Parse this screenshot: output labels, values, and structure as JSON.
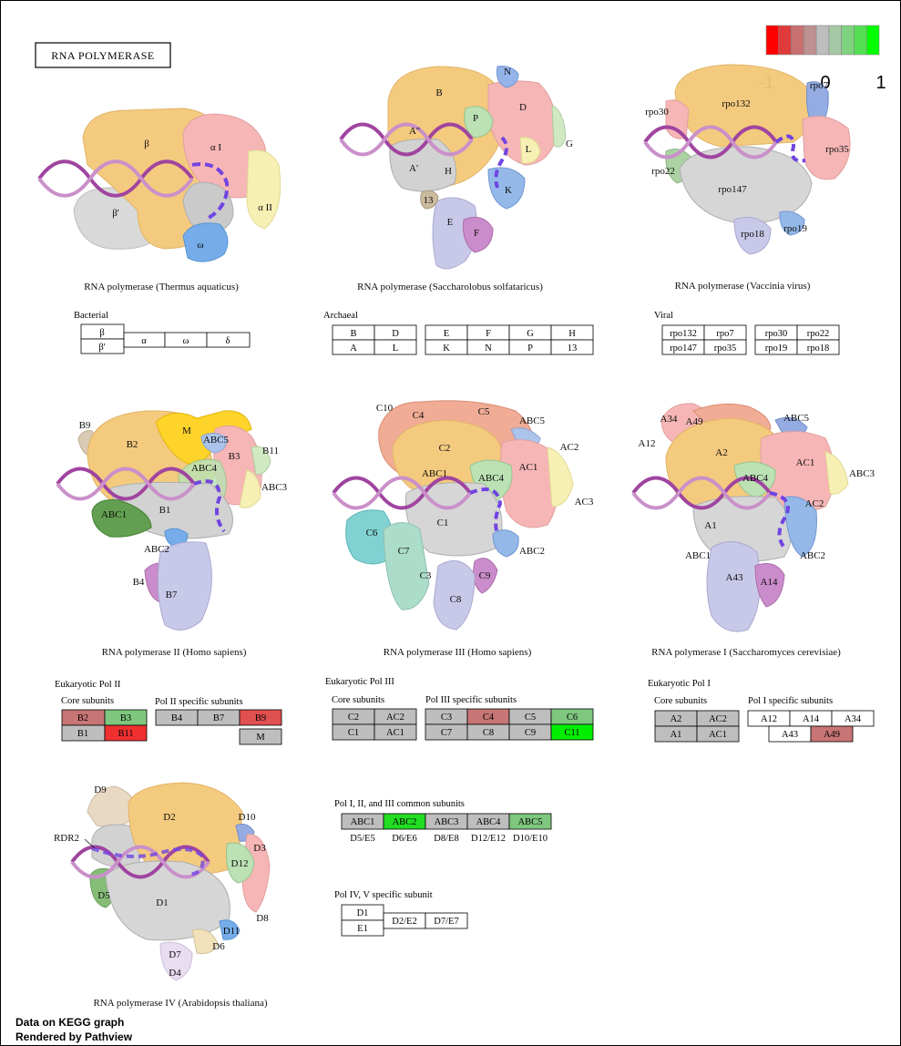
{
  "title": "RNA POLYMERASE",
  "legend": {
    "labels": [
      "-1",
      "0",
      "1"
    ],
    "colors": [
      "#ff0000",
      "#e03a3a",
      "#c87070",
      "#bf9090",
      "#bebebe",
      "#a6c8a6",
      "#7fd27f",
      "#52e052",
      "#00ff00"
    ]
  },
  "captions": {
    "thermus": "RNA polymerase (Thermus aquaticus)",
    "sulfolobus": "RNA polymerase (Saccharolobus solfataricus)",
    "vaccinia": "RNA polymerase (Vaccinia virus)",
    "pol2": "RNA polymerase II (Homo sapiens)",
    "pol3": "RNA polymerase III (Homo sapiens)",
    "pol1": "RNA polymerase I (Saccharomyces cerevisiae)",
    "pol4": "RNA polymerase IV (Arabidopsis thaliana)"
  },
  "structure_labels": {
    "thermus": [
      "β",
      "α I",
      "β'",
      "α II",
      "ω"
    ],
    "sulfolobus": [
      "B",
      "N",
      "A''",
      "P",
      "D",
      "A'",
      "H",
      "L",
      "G",
      "K",
      "13",
      "E",
      "F"
    ],
    "vaccinia": [
      "rpo132",
      "rpo30",
      "rpo7",
      "rpo35",
      "rpo22",
      "rpo147",
      "rpo18",
      "rpo19"
    ],
    "pol2": [
      "B9",
      "M",
      "B2",
      "ABC5",
      "B3",
      "B11",
      "ABC4",
      "ABC3",
      "ABC1",
      "B1",
      "ABC2",
      "B4",
      "B7"
    ],
    "pol3": [
      "C10",
      "C4",
      "C5",
      "ABC5",
      "C2",
      "AC2",
      "ABC1",
      "AC1",
      "ABC4",
      "AC3",
      "C1",
      "C6",
      "C7",
      "ABC2",
      "C3",
      "C9",
      "C8"
    ],
    "pol1": [
      "A34",
      "A49",
      "ABC5",
      "A12",
      "A2",
      "AC1",
      "ABC4",
      "ABC3",
      "AC2",
      "A1",
      "ABC1",
      "ABC2",
      "A43",
      "A14"
    ],
    "pol4": [
      "D9",
      "D2",
      "D10",
      "RDR2",
      "D3",
      "D12",
      "D5",
      "D1",
      "D8",
      "D11",
      "D6",
      "D7",
      "D4"
    ]
  },
  "section_titles": {
    "bacterial": "Bacterial",
    "archaeal": "Archaeal",
    "viral": "Viral",
    "pol2": "Eukaryotic Pol II",
    "pol3": "Eukaryotic Pol III",
    "pol1": "Eukaryotic Pol I",
    "core": "Core subunits",
    "pol2_specific": "Pol II specific subunits",
    "pol3_specific": "Pol III specific subunits",
    "pol1_specific": "Pol I specific subunits",
    "common": "Pol I, II, and III common subunits",
    "pol45": "Pol IV, V specific subunit"
  },
  "boxes": {
    "bacterial": [
      "β",
      "β'",
      "α",
      "ω",
      "δ"
    ],
    "archaeal": [
      "B",
      "D",
      "A",
      "L",
      "E",
      "F",
      "G",
      "H",
      "K",
      "N",
      "P",
      "13"
    ],
    "viral": [
      "rpo132",
      "rpo7",
      "rpo147",
      "rpo35",
      "rpo30",
      "rpo22",
      "rpo19",
      "rpo18"
    ],
    "pol2_core": [
      "B2",
      "B3",
      "B1",
      "B11"
    ],
    "pol2_specific": [
      "B4",
      "B7",
      "B9",
      "M"
    ],
    "pol3_core": [
      "C2",
      "AC2",
      "C1",
      "AC1"
    ],
    "pol3_specific": [
      "C3",
      "C4",
      "C5",
      "C6",
      "C7",
      "C8",
      "C9",
      "C11"
    ],
    "pol1_core": [
      "A2",
      "AC2",
      "A1",
      "AC1"
    ],
    "pol1_specific": [
      "A12",
      "A14",
      "A34",
      "A43",
      "A49"
    ],
    "common": [
      "ABC1",
      "ABC2",
      "ABC3",
      "ABC4",
      "ABC5"
    ],
    "common_sub": [
      "D5/E5",
      "D6/E6",
      "D8/E8",
      "D12/E12",
      "D10/E10"
    ],
    "pol45": [
      "D1",
      "E1",
      "D2/E2",
      "D7/E7"
    ]
  },
  "footer": [
    "Data on KEGG graph",
    "Rendered by Pathview"
  ]
}
